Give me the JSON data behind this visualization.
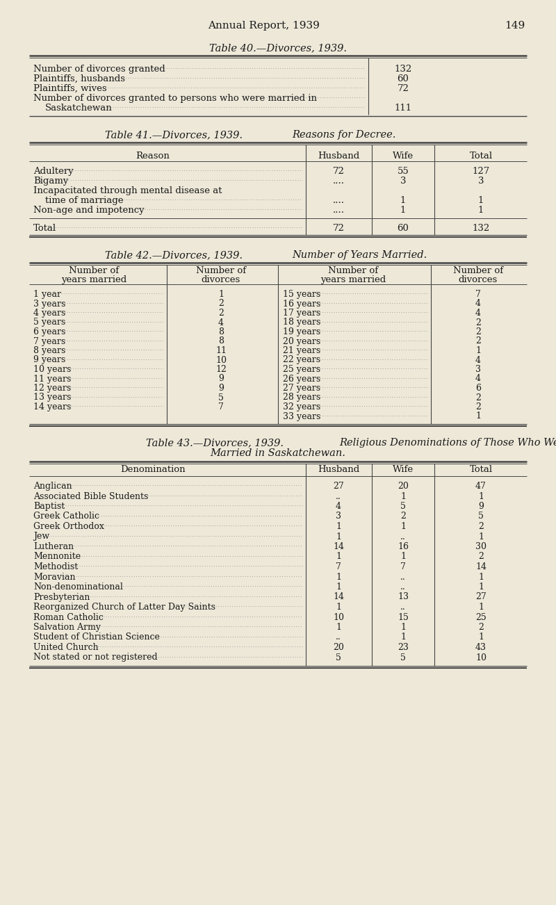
{
  "bg_color": "#ede8d8",
  "text_color": "#1a1a1a",
  "page_header": "Annual Report, 1939",
  "page_number": "149",
  "t40_title": "Table 40.—Divorces, 1939.",
  "t40_rows": [
    [
      "Number of divorces granted",
      "132"
    ],
    [
      "Plaintiffs, husbands",
      "60"
    ],
    [
      "Plaintiffs, wives",
      "72"
    ],
    [
      "Number of divorces granted to persons who were married in",
      "Saskatchewan",
      "111"
    ]
  ],
  "t41_title": "Table 41.—Divorces, 1939.",
  "t41_subtitle": "Reasons for Decree.",
  "t41_rows": [
    [
      "Adultery",
      "72",
      "55",
      "127"
    ],
    [
      "Bigamy",
      "....",
      "3",
      "3"
    ],
    [
      "Incapacitated through mental disease at",
      "time of marriage",
      "....",
      "1",
      "1"
    ],
    [
      "Non-age and impotency",
      "....",
      "1",
      "1"
    ],
    [
      "Total",
      "72",
      "60",
      "132"
    ]
  ],
  "t42_title": "Table 42.—Divorces, 1939.",
  "t42_subtitle": "Number of Years Married.",
  "t42_left": [
    [
      "1 year",
      "1"
    ],
    [
      "3 years",
      "2"
    ],
    [
      "4 years",
      "2"
    ],
    [
      "5 years",
      "4"
    ],
    [
      "6 years",
      "8"
    ],
    [
      "7 years",
      "8"
    ],
    [
      "8 years",
      "11"
    ],
    [
      "9 years",
      "10"
    ],
    [
      "10 years",
      "12"
    ],
    [
      "11 years",
      "9"
    ],
    [
      "12 years",
      "9"
    ],
    [
      "13 years",
      "5"
    ],
    [
      "14 years",
      "7"
    ]
  ],
  "t42_right": [
    [
      "15 years",
      "7"
    ],
    [
      "16 years",
      "4"
    ],
    [
      "17 years",
      "4"
    ],
    [
      "18 years",
      "2"
    ],
    [
      "19 years",
      "2"
    ],
    [
      "20 years",
      "2"
    ],
    [
      "21 years",
      "1"
    ],
    [
      "22 years",
      "4"
    ],
    [
      "25 years",
      "3"
    ],
    [
      "26 years",
      "4"
    ],
    [
      "27 years",
      "6"
    ],
    [
      "28 years",
      "2"
    ],
    [
      "32 years",
      "2"
    ],
    [
      "33 years",
      "1"
    ]
  ],
  "t43_title": "Table 43.—Divorces, 1939.",
  "t43_subtitle1": "Religious Denominations of Those Who Were",
  "t43_subtitle2": "Married in Saskatchewan.",
  "t43_rows": [
    [
      "Anglican",
      "27",
      "20",
      "47"
    ],
    [
      "Associated Bible Students",
      "..",
      "1",
      "1"
    ],
    [
      "Baptist",
      "4",
      "5",
      "9"
    ],
    [
      "Greek Catholic",
      "3",
      "2",
      "5"
    ],
    [
      "Greek Orthodox",
      "1",
      "1",
      "2"
    ],
    [
      "Jew",
      "1",
      "..",
      "1"
    ],
    [
      "Lutheran",
      "14",
      "16",
      "30"
    ],
    [
      "Mennonite",
      "1",
      "1",
      "2"
    ],
    [
      "Methodist",
      "7",
      "7",
      "14"
    ],
    [
      "Moravian",
      "1",
      "..",
      "1"
    ],
    [
      "Non-denominational",
      "1",
      "..",
      "1"
    ],
    [
      "Presbyterian",
      "14",
      "13",
      "27"
    ],
    [
      "Reorganized Church of Latter Day Saints",
      "1",
      "..",
      "1"
    ],
    [
      "Roman Catholic",
      "10",
      "15",
      "25"
    ],
    [
      "Salvation Army",
      "1",
      "1",
      "2"
    ],
    [
      "Student of Christian Science",
      "..",
      "1",
      "1"
    ],
    [
      "United Church",
      "20",
      "23",
      "43"
    ],
    [
      "Not stated or not registered",
      "5",
      "5",
      "10"
    ]
  ]
}
